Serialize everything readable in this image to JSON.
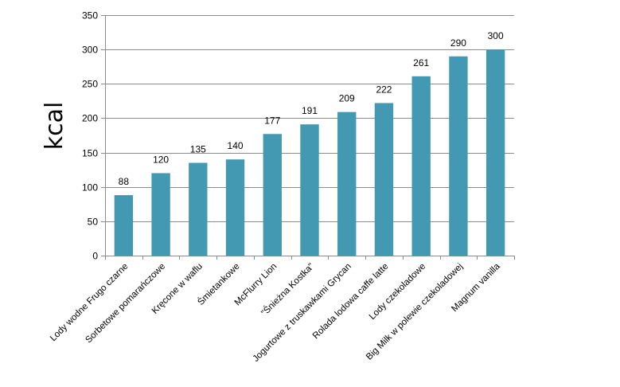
{
  "chart_data": {
    "type": "bar",
    "title": "",
    "xlabel": "",
    "ylabel": "kcal",
    "ylim": [
      0,
      350
    ],
    "yticks": [
      0,
      50,
      100,
      150,
      200,
      250,
      300,
      350
    ],
    "grid": true,
    "legend": "none",
    "bar_color": "#4499B2",
    "gridline_color": "#8C8C8C",
    "categories": [
      "Lody wodne  Frugo czarne",
      "Sorbetowe pomarańczowe",
      "Kręcone w waflu",
      "Śmietankowe",
      "McFlurry Lion",
      "\"Śnieżna Kostka\"",
      "Jogurtowe z truskawkami  Grycan",
      "Rolada lodowa caffe latte",
      "Lody czekoladowe",
      "Big Milk w polewie czekoladowej",
      "Magnum vanilla"
    ],
    "values": [
      88,
      120,
      135,
      140,
      177,
      191,
      209,
      222,
      261,
      290,
      300
    ],
    "data_labels": [
      "88",
      "120",
      "135",
      "140",
      "177",
      "191",
      "209",
      "222",
      "261",
      "290",
      "300"
    ]
  }
}
